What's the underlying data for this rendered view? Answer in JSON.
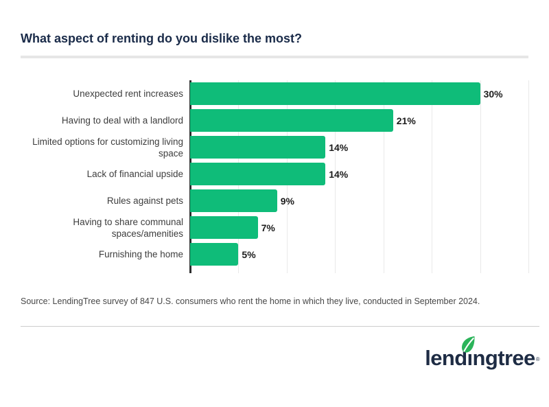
{
  "title": "What aspect of renting do you dislike the most?",
  "source_note": "Source: LendingTree survey of 847 U.S. consumers who rent the home in which they live, conducted in September 2024.",
  "logo": {
    "text": "lendingtree",
    "reg_mark": "®"
  },
  "colors": {
    "bar_green": "#0fbc79",
    "title_navy": "#1a2b49",
    "axis_dark": "#2e2e2e",
    "gridline_gray": "#e9e9e9",
    "category_label": "#3d3d3d",
    "value_label": "#1c1c1c",
    "divider_gray": "#e6e6e6",
    "footer_divider": "#cdcdcd",
    "source_text": "#474747",
    "logo_navy": "#1e2c44",
    "leaf_green": "#2bb45a"
  },
  "chart_data": {
    "type": "bar",
    "orientation": "horizontal",
    "title": "What aspect of renting do you dislike the most?",
    "categories": [
      "Unexpected rent increases",
      "Having to deal with a landlord",
      "Limited options for customizing living space",
      "Lack of financial upside",
      "Rules against pets",
      "Having to share communal spaces/amenities",
      "Furnishing the home"
    ],
    "values": [
      30,
      21,
      14,
      14,
      9,
      7,
      5
    ],
    "value_labels": [
      "30%",
      "21%",
      "14%",
      "14%",
      "9%",
      "7%",
      "5%"
    ],
    "xlim": [
      0,
      35
    ],
    "gridline_interval_pct": 5,
    "grid": true,
    "legend": false
  }
}
